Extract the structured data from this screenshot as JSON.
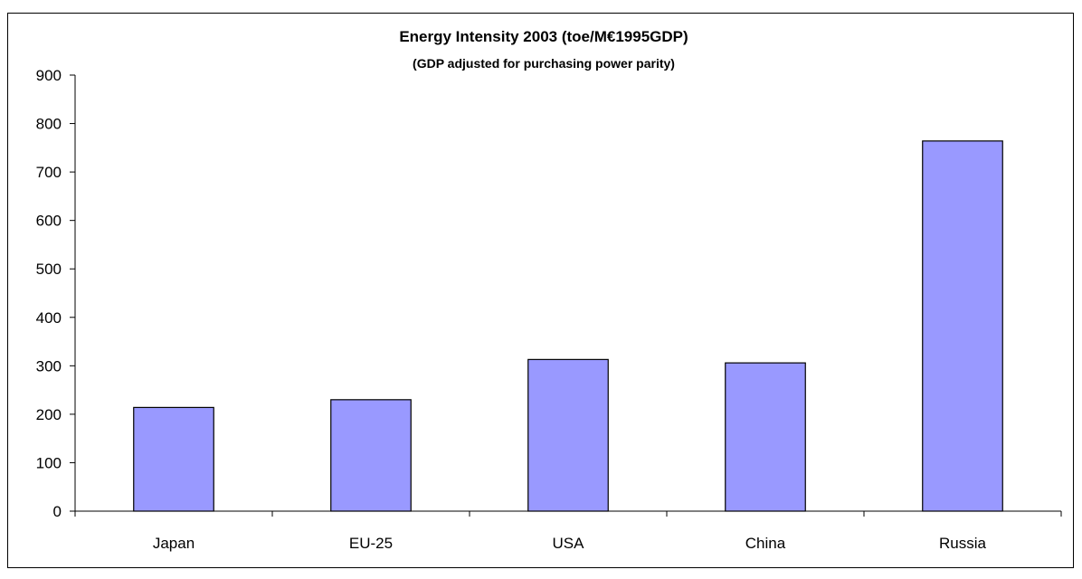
{
  "chart_data": {
    "type": "bar",
    "title": "Energy Intensity 2003 (toe/M€1995GDP)",
    "subtitle": "(GDP adjusted for purchasing power parity)",
    "categories": [
      "Japan",
      "EU-25",
      "USA",
      "China",
      "Russia"
    ],
    "values": [
      214,
      230,
      313,
      306,
      764
    ],
    "ylim": [
      0,
      900
    ],
    "yticks": [
      "0",
      "100",
      "200",
      "300",
      "400",
      "500",
      "600",
      "700",
      "800",
      "900"
    ],
    "xlabel": "",
    "ylabel": "",
    "grid": false,
    "legend": "none",
    "bar_color": "#9999ff",
    "bar_edge_color": "#000000"
  }
}
